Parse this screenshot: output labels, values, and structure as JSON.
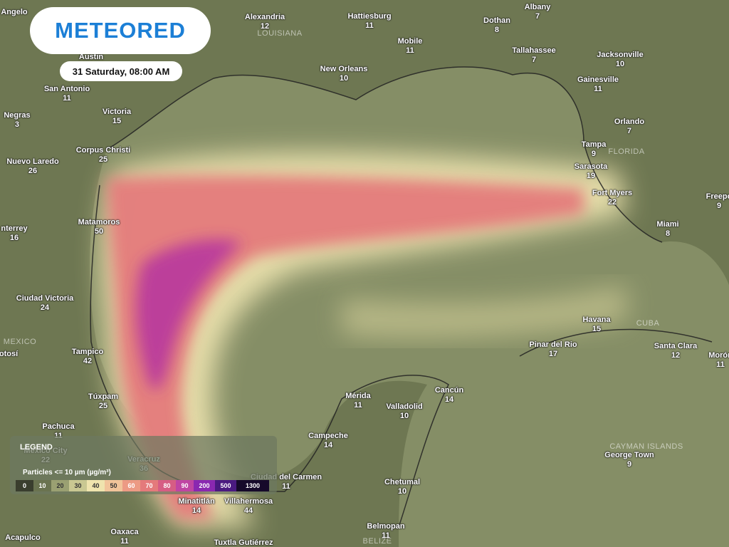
{
  "logo": "METEORED",
  "timestamp": "31 Saturday, 08:00 AM",
  "cities": [
    {
      "name": "Alexandria",
      "value": 12
    },
    {
      "name": "Hattiesburg",
      "value": 11
    },
    {
      "name": "Dothan",
      "value": 8
    },
    {
      "name": "Albany",
      "value": 7
    },
    {
      "name": "Mobile",
      "value": 11
    },
    {
      "name": "Tallahassee",
      "value": 7
    },
    {
      "name": "Jacksonville",
      "value": 10
    },
    {
      "name": "New Orleans",
      "value": 10
    },
    {
      "name": "Gainesville",
      "value": 11
    },
    {
      "name": "San Antonio",
      "value": 11
    },
    {
      "name": "Victoria",
      "value": 15
    },
    {
      "name": "Orlando",
      "value": 7
    },
    {
      "name": "Tampa",
      "value": 9
    },
    {
      "name": "Corpus Christi",
      "value": 25
    },
    {
      "name": "Nuevo Laredo",
      "value": 26
    },
    {
      "name": "Sarasota",
      "value": 19
    },
    {
      "name": "Fort Myers",
      "value": 22
    },
    {
      "name": "Freepo",
      "value": 9
    },
    {
      "name": "Matamoros",
      "value": 50
    },
    {
      "name": "Miami",
      "value": 8
    },
    {
      "name": "nterrey",
      "value": 16
    },
    {
      "name": "Ciudad Victoria",
      "value": 24
    },
    {
      "name": "Havana",
      "value": 15
    },
    {
      "name": "Pinar del Rio",
      "value": 17
    },
    {
      "name": "Santa Clara",
      "value": 12
    },
    {
      "name": "Morón",
      "value": 11
    },
    {
      "name": "Tampico",
      "value": 42
    },
    {
      "name": "Mérida",
      "value": 11
    },
    {
      "name": "Cancún",
      "value": 14
    },
    {
      "name": "Valladolid",
      "value": 10
    },
    {
      "name": "Túxpam",
      "value": 25
    },
    {
      "name": "Pachuca",
      "value": 11
    },
    {
      "name": "Campeche",
      "value": 14
    },
    {
      "name": "George Town",
      "value": 9
    },
    {
      "name": "Mexico City",
      "value": 22
    },
    {
      "name": "Veracruz",
      "value": 36
    },
    {
      "name": "Ciudad del Carmen",
      "value": 11
    },
    {
      "name": "Chetumal",
      "value": 10
    },
    {
      "name": "Minatitlán",
      "value": 14
    },
    {
      "name": "Villahermosa",
      "value": 44
    },
    {
      "name": "Belmopan",
      "value": 11
    },
    {
      "name": "Oaxaca",
      "value": 11
    },
    {
      "name": "Austin"
    },
    {
      "name": "Angelo"
    },
    {
      "name": "Negras",
      "value": 3
    },
    {
      "name": "otosí"
    },
    {
      "name": "Acapulco"
    },
    {
      "name": "Tuxtla Gutiérrez"
    }
  ],
  "regions": [
    "LOUISIANA",
    "FLORIDA",
    "CUBA",
    "MEXICO",
    "CAYMAN ISLANDS",
    "BELIZE"
  ],
  "legend": {
    "title": "LEGEND",
    "subtitle": "Particles <= 10 µm (µg/m³)",
    "steps": [
      {
        "label": 0,
        "color": "#3a3e2e"
      },
      {
        "label": 10,
        "color": "#6a7350"
      },
      {
        "label": 20,
        "color": "#9aa072"
      },
      {
        "label": 30,
        "color": "#c9c892"
      },
      {
        "label": 40,
        "color": "#efe4ae"
      },
      {
        "label": 50,
        "color": "#f1c49a"
      },
      {
        "label": 60,
        "color": "#ec9a84"
      },
      {
        "label": 70,
        "color": "#e47a7b"
      },
      {
        "label": 80,
        "color": "#d65d84"
      },
      {
        "label": 90,
        "color": "#bf45a3"
      },
      {
        "label": 200,
        "color": "#8a28b0"
      },
      {
        "label": 500,
        "color": "#4a1a80"
      },
      {
        "label": 1300,
        "color": "#160a2a"
      }
    ]
  }
}
